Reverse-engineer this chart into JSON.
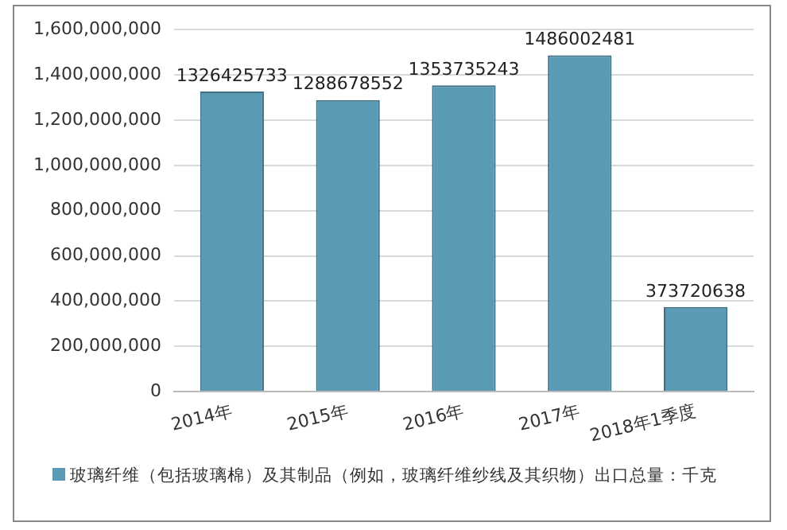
{
  "chart_data": {
    "type": "bar",
    "categories": [
      "2014年",
      "2015年",
      "2016年",
      "2017年",
      "2018年1季度"
    ],
    "series": [
      {
        "name": "玻璃纤维（包括玻璃棉）及其制品（例如，玻璃纤维纱线及其织物）出口总量：千克",
        "color": "#5a9ab5",
        "values": [
          1326425733,
          1288678552,
          1353735243,
          1486002481,
          373720638
        ]
      }
    ],
    "ylim": [
      0,
      1600000000
    ],
    "yticks": [
      {
        "value": 0,
        "label": "0"
      },
      {
        "value": 200000000,
        "label": "200,000,000"
      },
      {
        "value": 400000000,
        "label": "400,000,000"
      },
      {
        "value": 600000000,
        "label": "600,000,000"
      },
      {
        "value": 800000000,
        "label": "800,000,000"
      },
      {
        "value": 1000000000,
        "label": "1,000,000,000"
      },
      {
        "value": 1200000000,
        "label": "1,200,000,000"
      },
      {
        "value": 1400000000,
        "label": "1,400,000,000"
      },
      {
        "value": 1600000000,
        "label": "1,600,000,000"
      }
    ],
    "grid": "y",
    "legend": "bottom",
    "data_labels": true
  }
}
